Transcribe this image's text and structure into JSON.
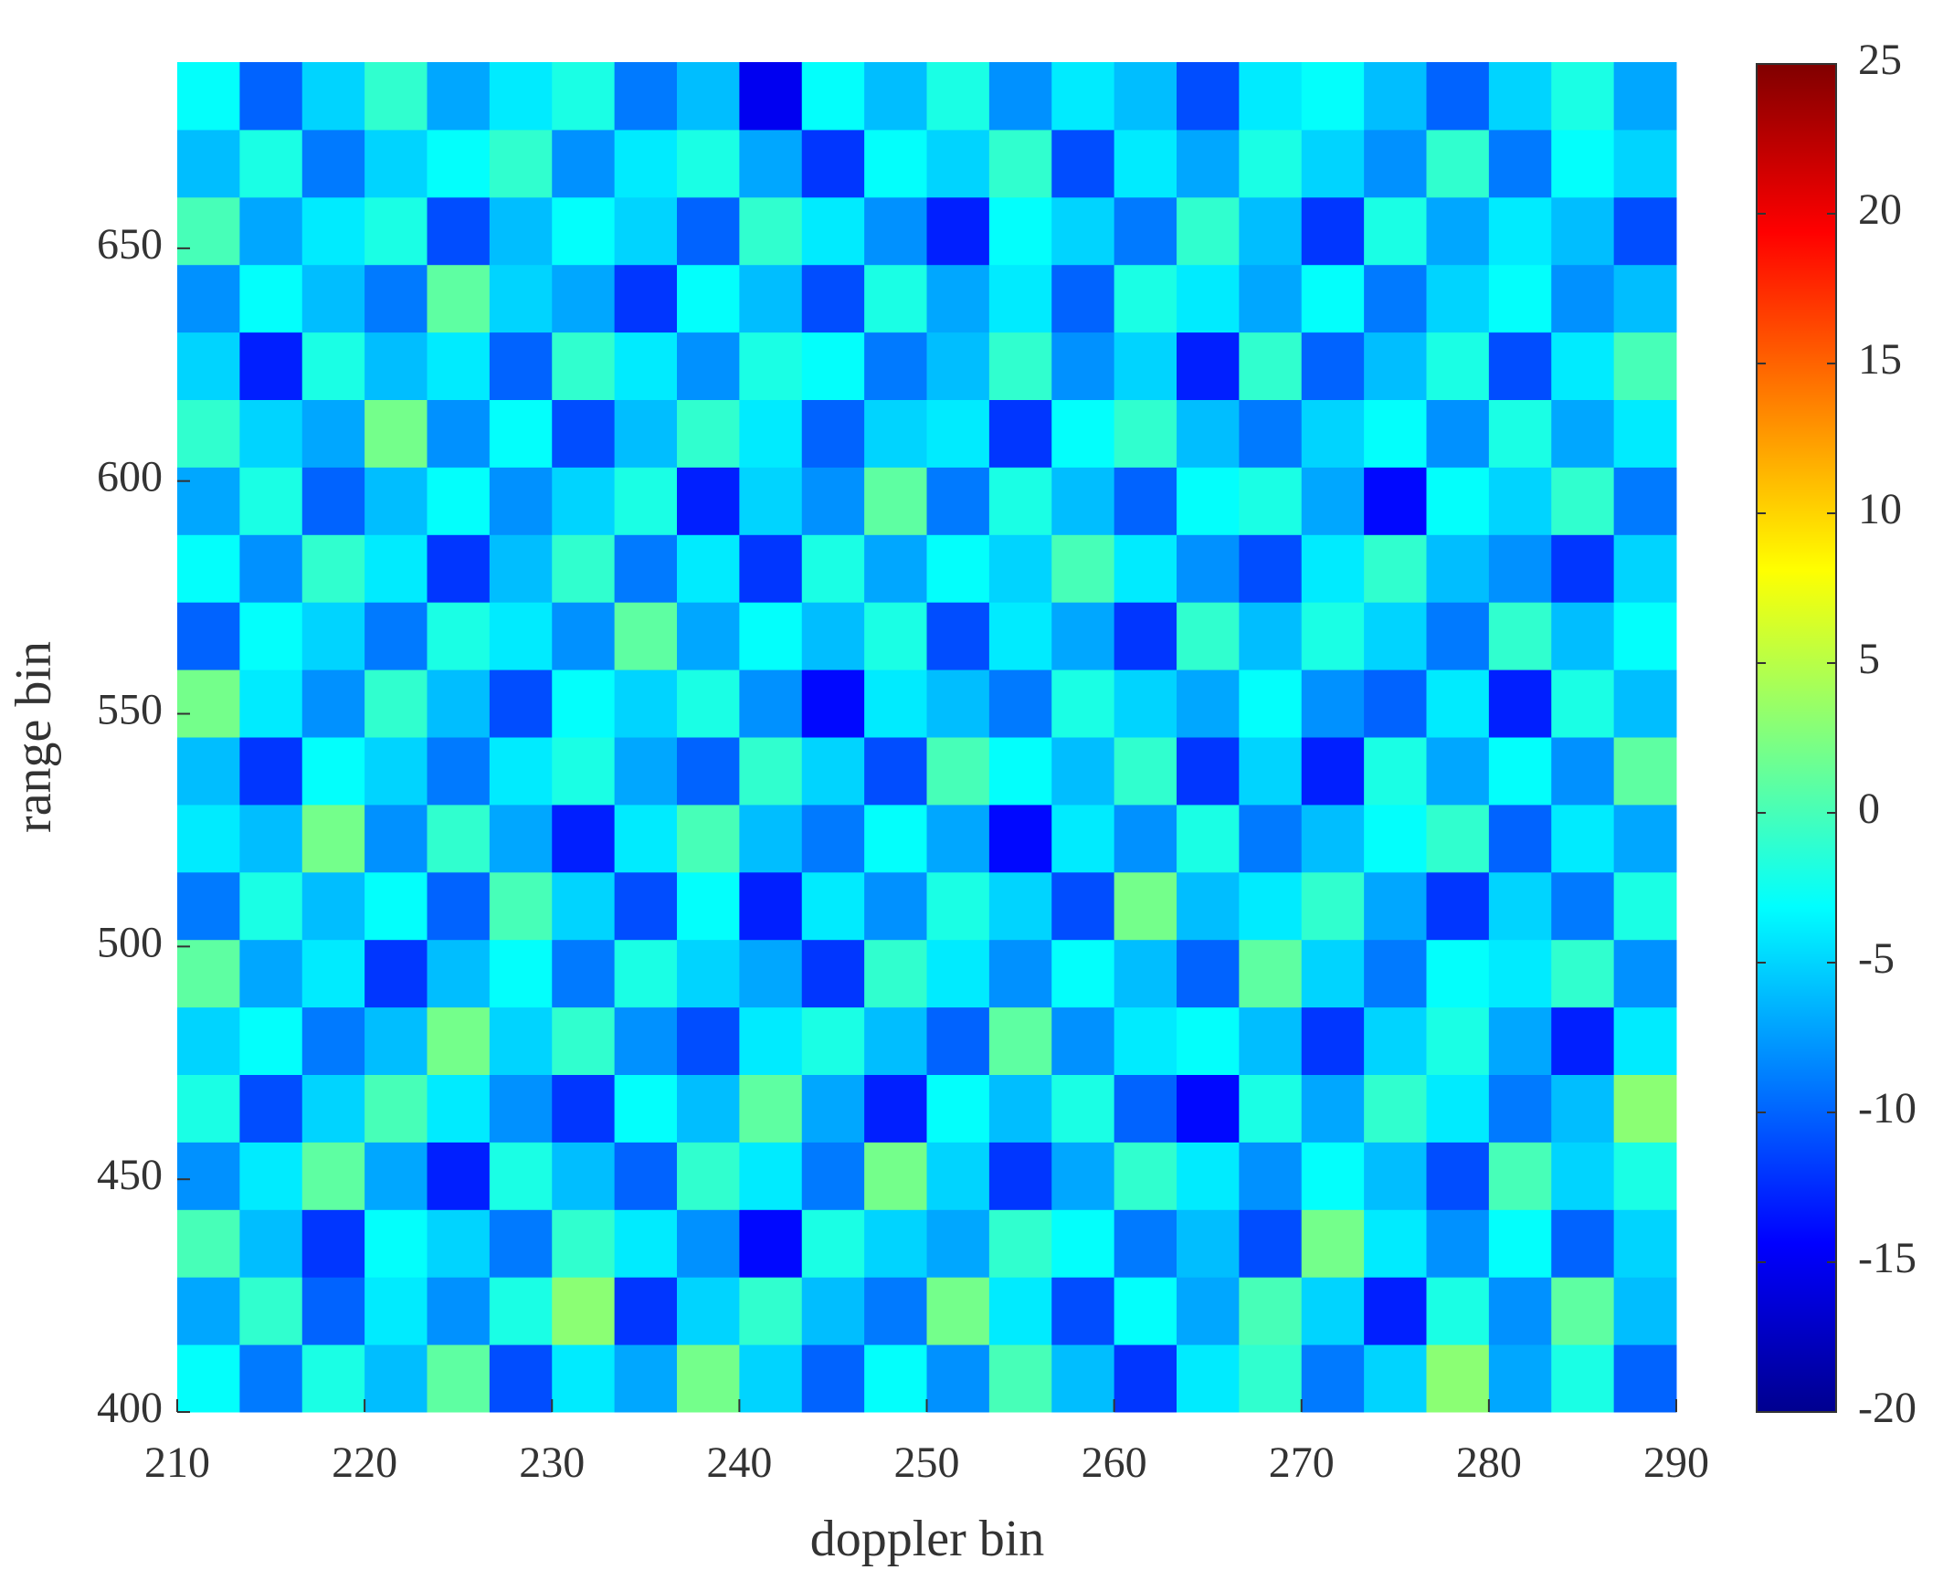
{
  "chart_data": {
    "type": "heatmap",
    "x_label": "doppler bin",
    "y_label": "range bin",
    "xlim": [
      210,
      290
    ],
    "ylim": [
      400,
      690
    ],
    "xticks": [
      210,
      220,
      230,
      240,
      250,
      260,
      270,
      280,
      290
    ],
    "yticks": [
      400,
      450,
      500,
      550,
      600,
      650
    ],
    "colormap": "jet",
    "clim": [
      -20,
      25
    ],
    "cticks": [
      -20,
      -15,
      -10,
      -5,
      0,
      5,
      10,
      15,
      20,
      25
    ],
    "z": [
      [
        -3,
        -9,
        -2,
        -6,
        1,
        -11,
        -4,
        -7,
        2,
        -5,
        -10,
        -3,
        -8,
        0,
        -6,
        -12,
        -4,
        -1,
        -9,
        -5,
        3,
        -7,
        -2,
        -10
      ],
      [
        -7,
        -1,
        -10,
        -4,
        -8,
        -2,
        3,
        -12,
        -5,
        -1,
        -6,
        -9,
        2,
        -4,
        -11,
        -3,
        -7,
        0,
        -5,
        -13,
        -2,
        -8,
        1,
        -6
      ],
      [
        0,
        -6,
        -12,
        -3,
        -5,
        -9,
        -1,
        -4,
        -8,
        -14,
        -2,
        -5,
        -7,
        -1,
        -3,
        -9,
        -6,
        -11,
        2,
        -4,
        -8,
        -3,
        -10,
        -5
      ],
      [
        -8,
        -4,
        1,
        -7,
        -13,
        -2,
        -6,
        -10,
        -1,
        -4,
        -9,
        2,
        -5,
        -12,
        -7,
        -1,
        -4,
        -8,
        -3,
        -6,
        -11,
        0,
        -5,
        -2
      ],
      [
        -2,
        -11,
        -5,
        0,
        -4,
        -8,
        -12,
        -3,
        -6,
        1,
        -7,
        -13,
        -3,
        -6,
        -2,
        -10,
        -14,
        -2,
        -7,
        -1,
        -4,
        -9,
        -6,
        3
      ],
      [
        -5,
        -3,
        -9,
        -6,
        2,
        -5,
        -1,
        -8,
        -11,
        -4,
        -2,
        -6,
        -10,
        1,
        -8,
        -4,
        -3,
        -6,
        -12,
        -5,
        -2,
        -7,
        -13,
        -4
      ],
      [
        1,
        -7,
        -4,
        -12,
        -6,
        -3,
        -9,
        -2,
        -5,
        -7,
        -12,
        -1,
        -4,
        -8,
        -3,
        -6,
        -10,
        1,
        -5,
        -9,
        -3,
        -4,
        -1,
        -8
      ],
      [
        -9,
        -2,
        -6,
        -3,
        -10,
        0,
        -5,
        -11,
        -3,
        -13,
        -4,
        -8,
        -2,
        -5,
        -11,
        2,
        -6,
        -4,
        -1,
        -7,
        -12,
        -5,
        -9,
        -2
      ],
      [
        -4,
        -6,
        2,
        -8,
        -1,
        -7,
        -13,
        -4,
        0,
        -6,
        -9,
        -3,
        -7,
        -14,
        -4,
        -8,
        -2,
        -9,
        -6,
        -3,
        -1,
        -10,
        -4,
        -7
      ],
      [
        -6,
        -12,
        -3,
        -5,
        -9,
        -4,
        -2,
        -7,
        -10,
        -1,
        -5,
        -11,
        0,
        -3,
        -6,
        -1,
        -12,
        -5,
        -13,
        -2,
        -7,
        -3,
        -8,
        1
      ],
      [
        2,
        -4,
        -8,
        -1,
        -6,
        -11,
        -3,
        -5,
        -2,
        -8,
        -14,
        -4,
        -6,
        -9,
        -2,
        -5,
        -7,
        -3,
        -8,
        -10,
        -4,
        -13,
        -2,
        -6
      ],
      [
        -10,
        -3,
        -5,
        -9,
        -2,
        -4,
        -8,
        1,
        -7,
        -3,
        -6,
        -2,
        -11,
        -4,
        -7,
        -12,
        -1,
        -6,
        -2,
        -5,
        -9,
        -1,
        -6,
        -3
      ],
      [
        -3,
        -8,
        -1,
        -4,
        -12,
        -6,
        -1,
        -9,
        -4,
        -12,
        -2,
        -7,
        -3,
        -5,
        0,
        -4,
        -8,
        -11,
        -4,
        -1,
        -6,
        -8,
        -12,
        -5
      ],
      [
        -7,
        -2,
        -10,
        -6,
        -3,
        -8,
        -5,
        -2,
        -13,
        -5,
        -8,
        1,
        -9,
        -2,
        -6,
        -10,
        -3,
        -2,
        -7,
        -14,
        -3,
        -5,
        -1,
        -9
      ],
      [
        -1,
        -5,
        -7,
        2,
        -8,
        -3,
        -11,
        -6,
        -1,
        -4,
        -10,
        -5,
        -4,
        -12,
        -3,
        -1,
        -6,
        -9,
        -5,
        -3,
        -8,
        -2,
        -7,
        -4
      ],
      [
        -5,
        -13,
        -2,
        -6,
        -4,
        -10,
        -1,
        -4,
        -8,
        -2,
        -3,
        -9,
        -6,
        -1,
        -8,
        -5,
        -13,
        -1,
        -10,
        -6,
        -2,
        -11,
        -4,
        0
      ],
      [
        -8,
        -3,
        -6,
        -9,
        1,
        -5,
        -7,
        -12,
        -3,
        -6,
        -11,
        -2,
        -7,
        -4,
        -10,
        -2,
        -4,
        -7,
        -3,
        -9,
        -5,
        -3,
        -8,
        -6
      ],
      [
        0,
        -7,
        -4,
        -2,
        -11,
        -6,
        -3,
        -5,
        -10,
        -1,
        -4,
        -8,
        -13,
        -3,
        -5,
        -9,
        -1,
        -6,
        -12,
        -2,
        -7,
        -4,
        -6,
        -11
      ],
      [
        -6,
        -2,
        -9,
        -5,
        -3,
        -1,
        -8,
        -4,
        -2,
        -7,
        -12,
        -3,
        -5,
        -1,
        -11,
        -4,
        -7,
        -2,
        -5,
        -8,
        -1,
        -9,
        -3,
        -5
      ],
      [
        -3,
        -10,
        -5,
        -1,
        -7,
        -4,
        -2,
        -9,
        -6,
        -15,
        -3,
        -6,
        -2,
        -8,
        -4,
        -6,
        -11,
        -4,
        -3,
        -6,
        -10,
        -5,
        -2,
        -7
      ]
    ]
  }
}
